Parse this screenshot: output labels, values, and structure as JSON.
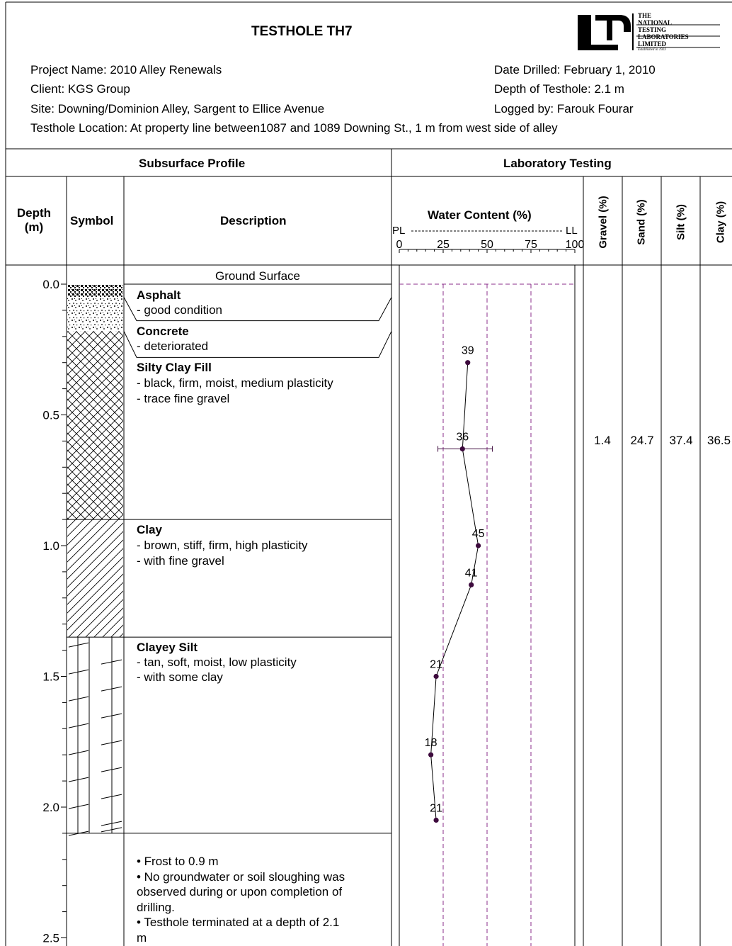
{
  "header": {
    "title": "TESTHOLE TH7",
    "project": "Project Name: 2010  Alley Renewals",
    "client": "Client: KGS Group",
    "site": "Site: Downing/Dominion Alley, Sargent to Ellice Avenue",
    "location": "Testhole Location: At property line between1087 and 1089 Downing St., 1 m from west side of alley",
    "date": "Date Drilled: February 1, 2010",
    "depth": "Depth of Testhole: 2.1 m",
    "logged": "Logged by: Farouk Fourar",
    "logo_text": [
      "THE",
      "NATIONAL",
      "TESTING",
      "LABORATORIES",
      "LIMITED",
      "Established in 1923"
    ]
  },
  "columns": {
    "subsurface": "Subsurface Profile",
    "lab": "Laboratory Testing",
    "depth": "Depth\n(m)",
    "depth_l1": "Depth",
    "depth_l2": "(m)",
    "symbol": "Symbol",
    "description": "Description",
    "water": "Water Content (%)",
    "pl": "PL",
    "ll": "LL",
    "gravel": "Gravel (%)",
    "sand": "Sand (%)",
    "silt": "Silt (%)",
    "clay": "Clay (%)"
  },
  "water_ticks": [
    "0",
    "25",
    "50",
    "75",
    "100"
  ],
  "depth_labels": [
    "0.0",
    "0.5",
    "1.0",
    "1.5",
    "2.0",
    "2.5"
  ],
  "ground_surface": "Ground Surface",
  "layers": [
    {
      "name": "Asphalt",
      "lines": [
        "- good condition"
      ],
      "from": 0.0,
      "to": 0.18
    },
    {
      "name": "Concrete",
      "lines": [
        "- deteriorated"
      ],
      "from": 0.18,
      "to": 0.28
    },
    {
      "name": "Silty Clay Fill",
      "lines": [
        "- black, firm, moist, medium plasticity",
        "- trace fine gravel"
      ],
      "from": 0.28,
      "to": 0.9
    },
    {
      "name": "Clay",
      "lines": [
        "- brown, stiff, firm, high plasticity",
        "- with fine gravel"
      ],
      "from": 0.9,
      "to": 1.35
    },
    {
      "name": "Clayey Silt",
      "lines": [
        "- tan, soft, moist, low plasticity",
        "- with some clay"
      ],
      "from": 1.35,
      "to": 2.1
    }
  ],
  "notes": [
    "• Frost to 0.9 m",
    "• No groundwater or soil sloughing was",
    "observed during or upon completion of",
    "drilling.",
    "• Testhole terminated at a depth of 2.1",
    "m"
  ],
  "chart_data": {
    "type": "scatter",
    "title": "Water Content (%)",
    "xlabel": "Water Content (%)",
    "ylabel": "Depth (m)",
    "xlim": [
      0,
      100
    ],
    "ylim": [
      0,
      2.5
    ],
    "series": [
      {
        "points": [
          {
            "depth": 0.3,
            "w": 39,
            "label": "39"
          },
          {
            "depth": 0.63,
            "w": 36,
            "label": "36",
            "range": [
              22,
              53
            ]
          },
          {
            "depth": 1.0,
            "w": 45,
            "label": "45"
          },
          {
            "depth": 1.15,
            "w": 41,
            "label": "41"
          },
          {
            "depth": 1.5,
            "w": 21,
            "label": "21"
          },
          {
            "depth": 1.8,
            "w": 18,
            "label": "18"
          },
          {
            "depth": 2.05,
            "w": 21,
            "label": "21"
          }
        ]
      }
    ]
  },
  "gradation": {
    "depth": 0.6,
    "gravel": "1.4",
    "sand": "24.7",
    "silt": "37.4",
    "clay": "36.5"
  },
  "colors": {
    "data": "#3d0a3d",
    "limit_line": "#8b2f8b"
  }
}
